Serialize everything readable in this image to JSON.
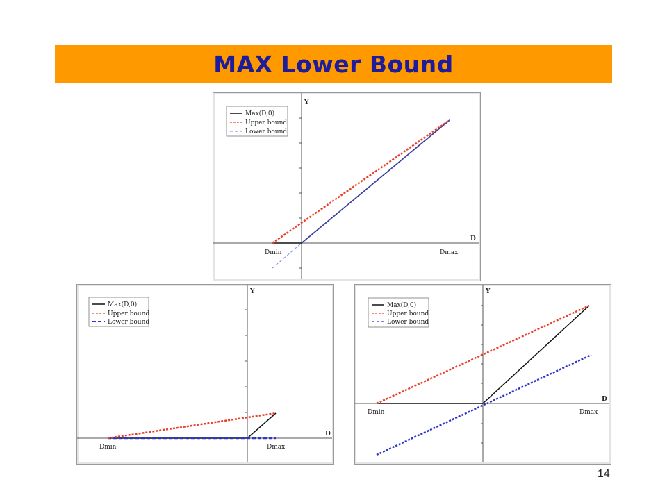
{
  "title": "MAX Lower Bound",
  "page_number": "14",
  "colors": {
    "title_bar": "#ff9900",
    "title_text": "#1c1c9c",
    "max_line": "#111111",
    "upper_bound": "#e8402a",
    "lower_bound": "#2f35c8",
    "lower_bound_light": "#8f96e6"
  },
  "legend": {
    "max": "Max(D,0)",
    "upper": "Upper bound",
    "lower": "Lower bound"
  },
  "axes": {
    "x_label": "D",
    "y_label": "Y",
    "dmin_label": "Dmin",
    "dmax_label": "Dmax"
  },
  "panels": [
    {
      "id": "panel-top",
      "case": "Dmin < 0 < Dmax"
    },
    {
      "id": "panel-bottom-left",
      "case": "Dmin < 0 < Dmax"
    },
    {
      "id": "panel-bottom-right",
      "case": "Dmin < 0 < Dmax"
    }
  ]
}
